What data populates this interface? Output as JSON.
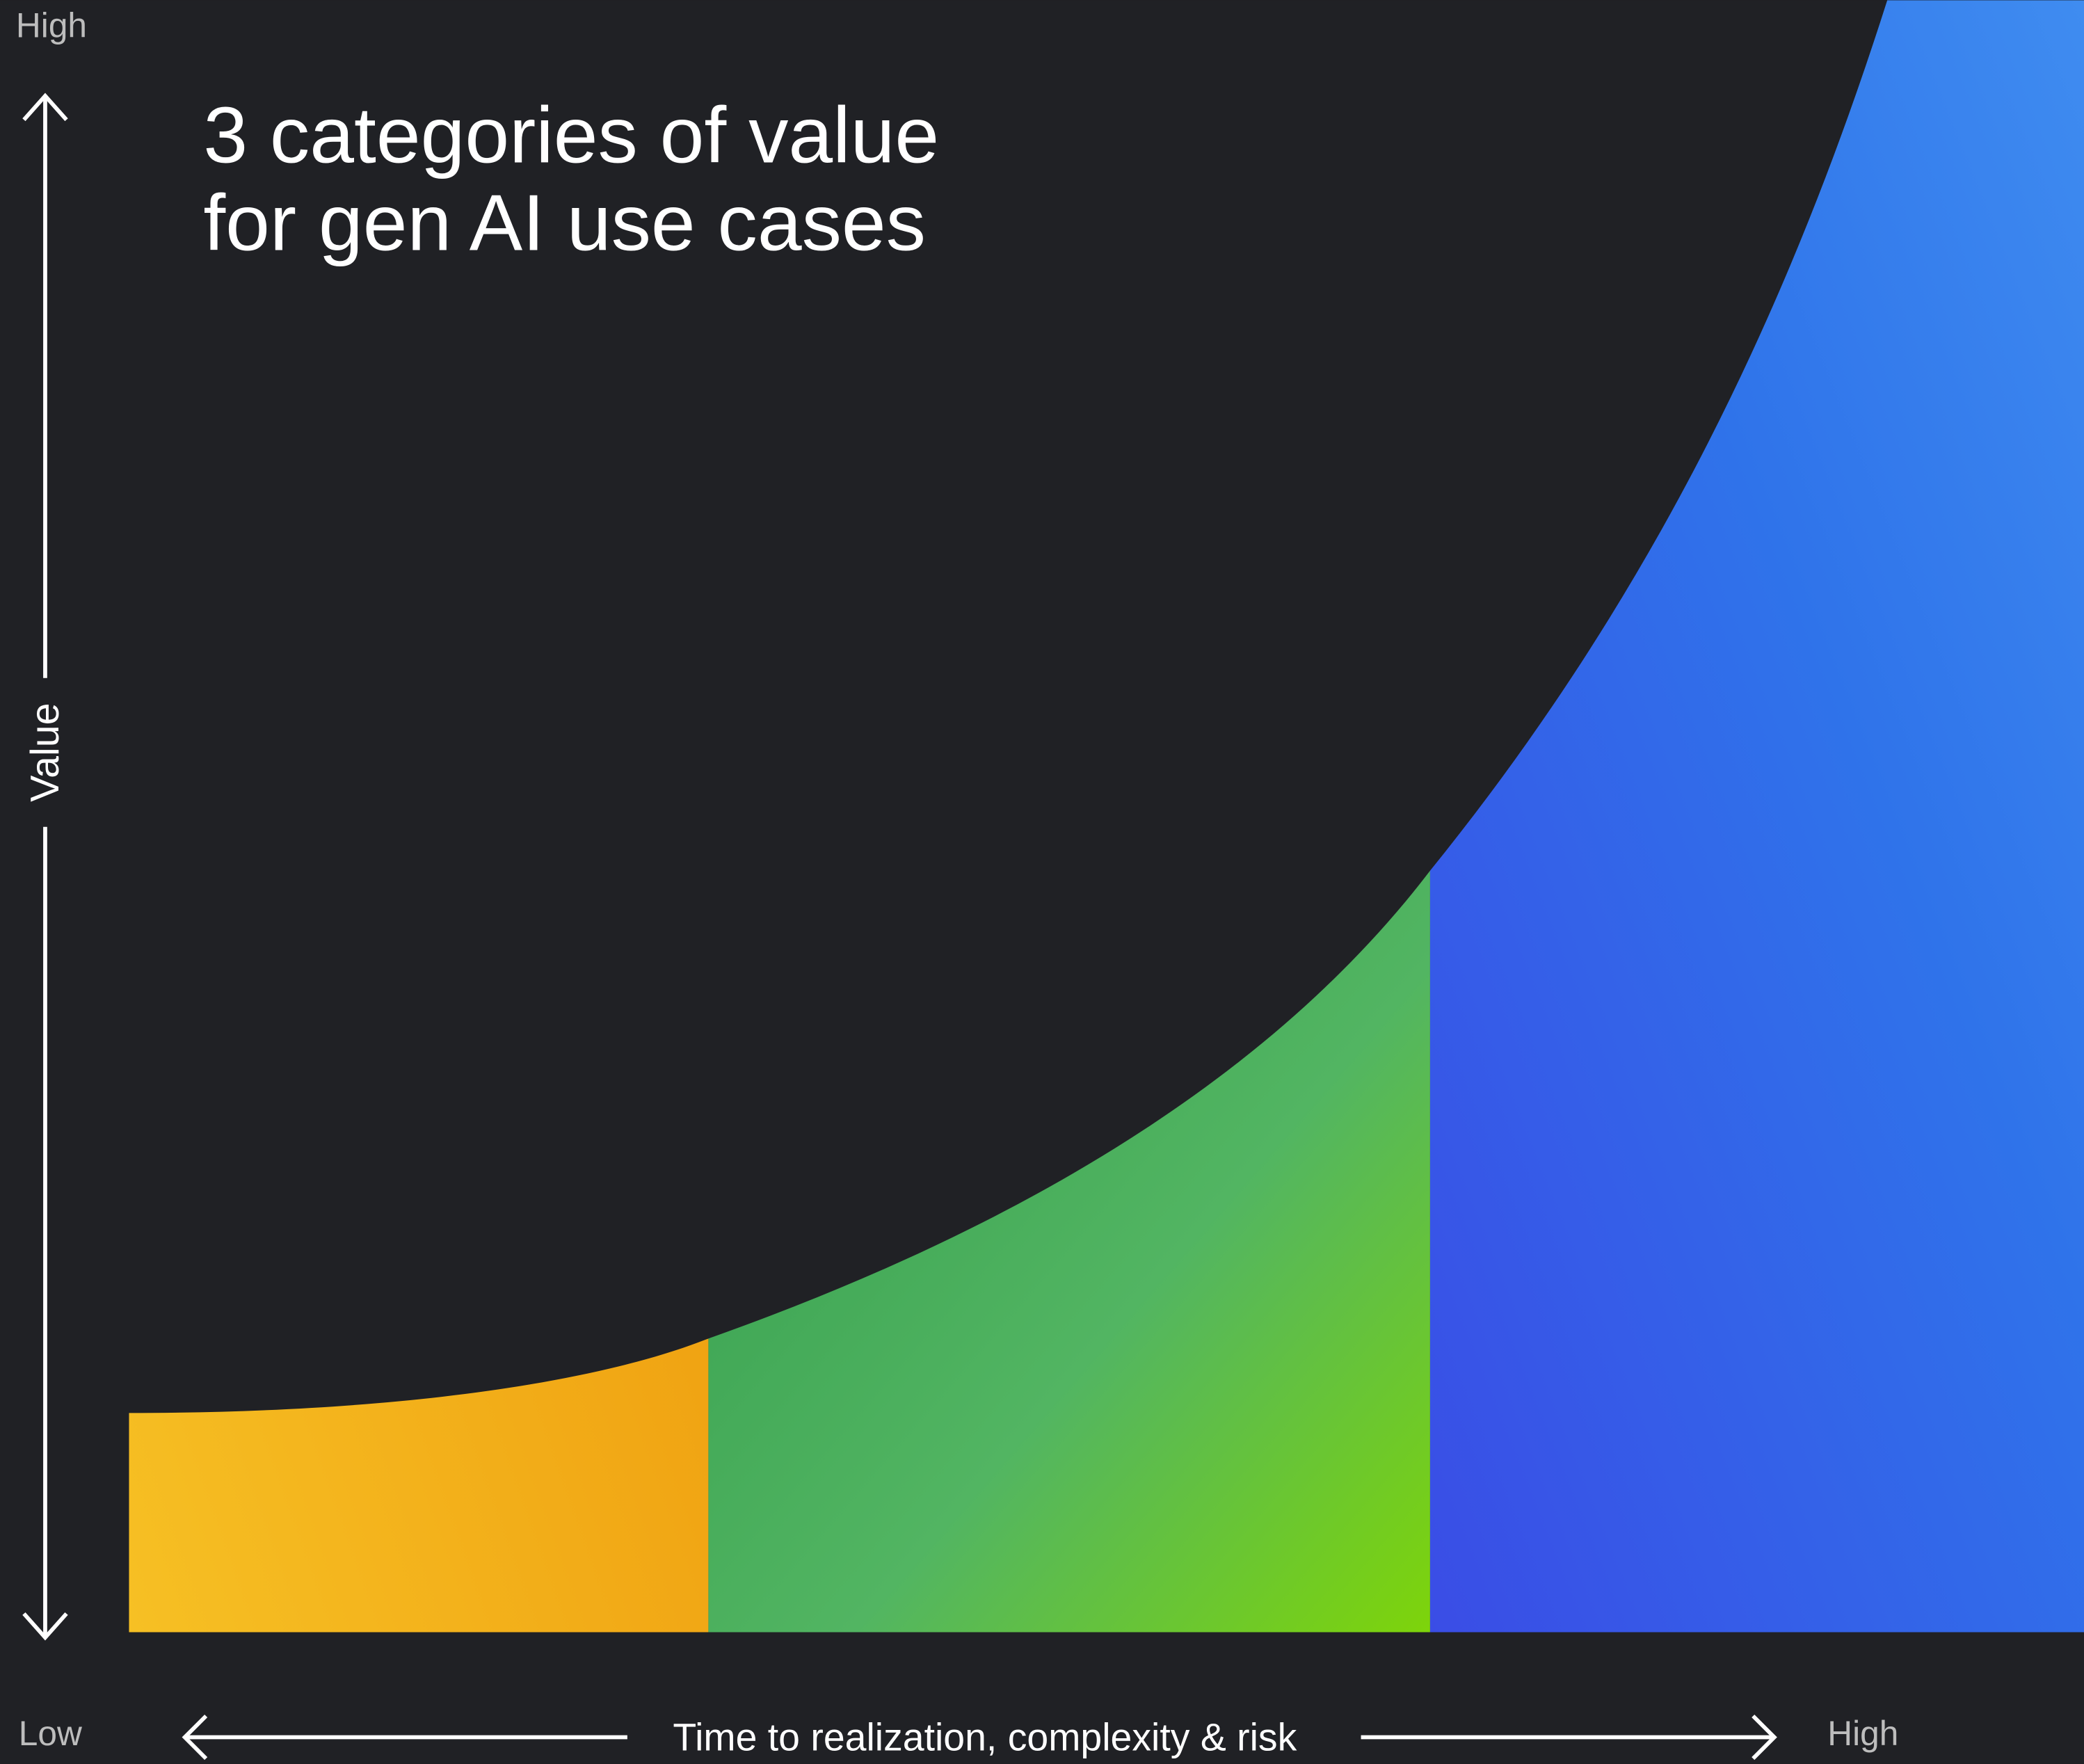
{
  "title_lines": [
    "3 categories of value",
    "for gen AI use cases"
  ],
  "y_axis": {
    "top_label": "High",
    "label": "Value"
  },
  "x_axis": {
    "start_label": "Low",
    "label": "Time to realization, complexity & risk",
    "end_label": "High"
  }
}
